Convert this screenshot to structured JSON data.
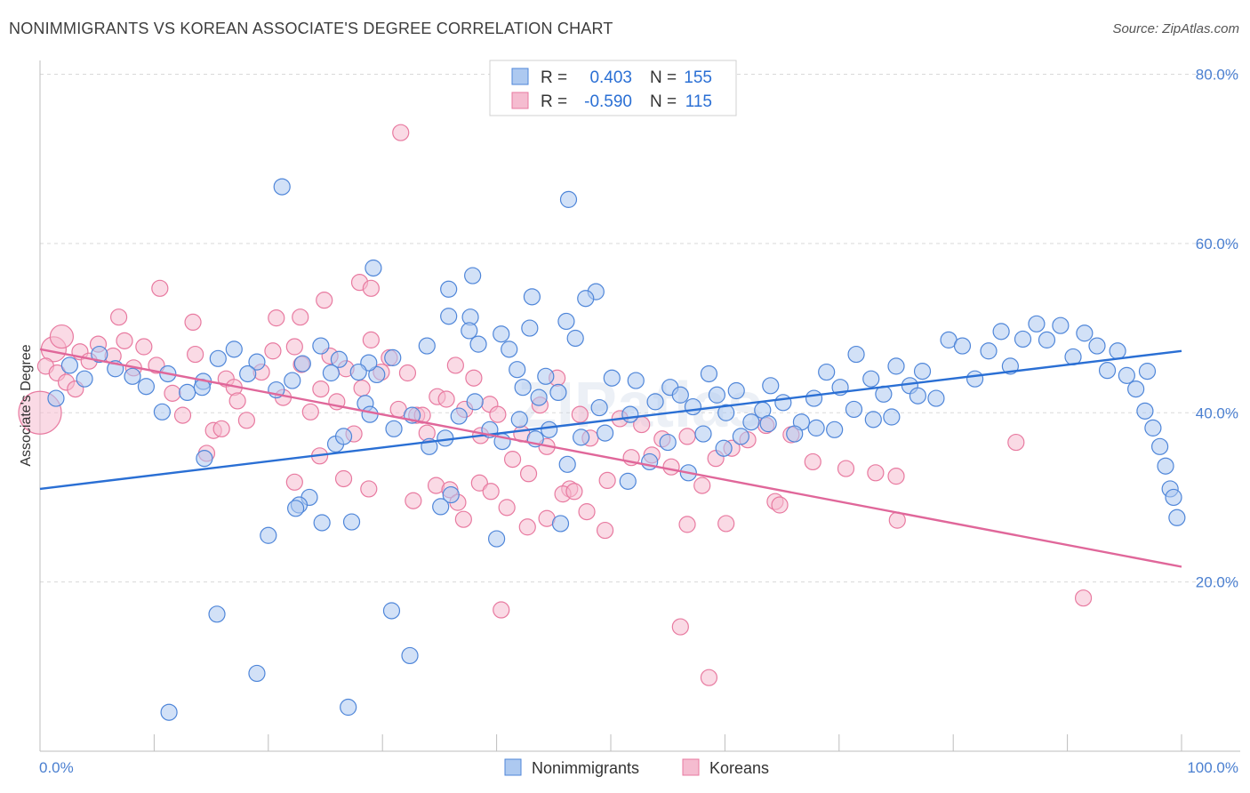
{
  "title": "NONIMMIGRANTS VS KOREAN ASSOCIATE'S DEGREE CORRELATION CHART",
  "source": "Source: ZipAtlas.com",
  "watermark": "ZIPatlas",
  "colors": {
    "blue": "#4f86d9",
    "blue_fill": "#adc9f0",
    "blue_line": "#2a6fd4",
    "pink": "#e87aa0",
    "pink_fill": "#f5bcd0",
    "pink_line": "#e0679a",
    "axis_label": "#4a7fd0",
    "grid": "#d9d9d9"
  },
  "legend": {
    "rows": [
      {
        "r_label": "R =",
        "r_value": "0.403",
        "n_label": "N =",
        "n_value": "155"
      },
      {
        "r_label": "R =",
        "r_value": "-0.590",
        "n_label": "N =",
        "n_value": "115"
      }
    ]
  },
  "bottom_legend": {
    "series1": "Nonimmigrants",
    "series2": "Koreans"
  },
  "chart_data": {
    "type": "scatter",
    "title": "NONIMMIGRANTS VS KOREAN ASSOCIATE'S DEGREE CORRELATION CHART",
    "xlabel": "",
    "ylabel": "Associate's Degree",
    "xlim": [
      0,
      100
    ],
    "ylim": [
      0,
      80
    ],
    "x_tick_labels": [
      "0.0%",
      "100.0%"
    ],
    "y_ticks": [
      20,
      40,
      60,
      80
    ],
    "y_tick_labels": [
      "20.0%",
      "40.0%",
      "60.0%",
      "80.0%"
    ],
    "grid": true,
    "series": [
      {
        "name": "Nonimmigrants",
        "r": 0.403,
        "n": 155,
        "trend": {
          "x": [
            0,
            100
          ],
          "y": [
            31.0,
            47.3
          ]
        },
        "points": [
          [
            21.2,
            66.7
          ],
          [
            46.3,
            65.2
          ],
          [
            29.2,
            57.1
          ],
          [
            37.9,
            56.2
          ],
          [
            35.8,
            54.6
          ],
          [
            43.1,
            53.7
          ],
          [
            48.7,
            54.3
          ],
          [
            47.8,
            53.5
          ],
          [
            37.7,
            51.3
          ],
          [
            46.1,
            50.8
          ],
          [
            46.9,
            48.8
          ],
          [
            35.8,
            51.4
          ],
          [
            42.9,
            50.0
          ],
          [
            40.4,
            49.3
          ],
          [
            37.6,
            49.7
          ],
          [
            38.4,
            48.1
          ],
          [
            33.9,
            47.9
          ],
          [
            30.9,
            46.5
          ],
          [
            29.5,
            44.5
          ],
          [
            28.8,
            45.9
          ],
          [
            27.9,
            44.8
          ],
          [
            26.2,
            46.3
          ],
          [
            25.5,
            44.7
          ],
          [
            24.6,
            47.9
          ],
          [
            23.0,
            45.8
          ],
          [
            22.1,
            43.8
          ],
          [
            20.7,
            42.7
          ],
          [
            19.0,
            46.0
          ],
          [
            18.2,
            44.6
          ],
          [
            17.0,
            47.5
          ],
          [
            15.6,
            46.4
          ],
          [
            14.3,
            43.7
          ],
          [
            12.9,
            42.4
          ],
          [
            11.2,
            44.6
          ],
          [
            10.7,
            40.1
          ],
          [
            9.3,
            43.1
          ],
          [
            8.1,
            44.3
          ],
          [
            6.6,
            45.2
          ],
          [
            5.2,
            46.9
          ],
          [
            3.9,
            44.0
          ],
          [
            2.6,
            45.6
          ],
          [
            1.4,
            41.7
          ],
          [
            41.1,
            47.5
          ],
          [
            41.8,
            45.1
          ],
          [
            42.3,
            43.0
          ],
          [
            43.7,
            41.8
          ],
          [
            44.3,
            44.3
          ],
          [
            45.4,
            42.4
          ],
          [
            49.0,
            40.6
          ],
          [
            50.1,
            44.1
          ],
          [
            51.7,
            39.8
          ],
          [
            52.2,
            43.8
          ],
          [
            53.9,
            41.3
          ],
          [
            55.2,
            43.0
          ],
          [
            56.1,
            42.1
          ],
          [
            57.2,
            40.7
          ],
          [
            58.6,
            44.6
          ],
          [
            59.3,
            42.1
          ],
          [
            60.1,
            40.0
          ],
          [
            61.0,
            42.6
          ],
          [
            62.3,
            38.9
          ],
          [
            63.3,
            40.3
          ],
          [
            64.0,
            43.2
          ],
          [
            65.1,
            41.2
          ],
          [
            66.7,
            38.9
          ],
          [
            67.8,
            41.7
          ],
          [
            68.9,
            44.8
          ],
          [
            70.1,
            43.0
          ],
          [
            71.5,
            46.9
          ],
          [
            72.8,
            44.0
          ],
          [
            73.9,
            42.2
          ],
          [
            75.0,
            45.5
          ],
          [
            76.2,
            43.2
          ],
          [
            77.3,
            44.9
          ],
          [
            78.5,
            41.7
          ],
          [
            79.6,
            48.6
          ],
          [
            80.8,
            47.9
          ],
          [
            81.9,
            44.0
          ],
          [
            83.1,
            47.3
          ],
          [
            84.2,
            49.6
          ],
          [
            85.0,
            45.5
          ],
          [
            86.1,
            48.7
          ],
          [
            87.3,
            50.5
          ],
          [
            88.2,
            48.6
          ],
          [
            89.4,
            50.3
          ],
          [
            90.5,
            46.6
          ],
          [
            91.5,
            49.4
          ],
          [
            92.6,
            47.9
          ],
          [
            93.5,
            45.0
          ],
          [
            94.4,
            47.3
          ],
          [
            95.2,
            44.4
          ],
          [
            96.0,
            42.8
          ],
          [
            96.8,
            40.2
          ],
          [
            97.5,
            38.2
          ],
          [
            98.1,
            36.0
          ],
          [
            98.6,
            33.7
          ],
          [
            99.0,
            31.0
          ],
          [
            99.3,
            30.0
          ],
          [
            99.6,
            27.6
          ],
          [
            31.0,
            38.1
          ],
          [
            32.6,
            39.7
          ],
          [
            34.1,
            36.0
          ],
          [
            35.5,
            37.0
          ],
          [
            36.7,
            39.6
          ],
          [
            38.1,
            41.3
          ],
          [
            39.4,
            38.0
          ],
          [
            40.5,
            36.6
          ],
          [
            42.0,
            39.2
          ],
          [
            43.4,
            36.9
          ],
          [
            44.6,
            38.0
          ],
          [
            46.2,
            33.9
          ],
          [
            47.4,
            37.1
          ],
          [
            49.5,
            37.6
          ],
          [
            51.5,
            31.9
          ],
          [
            53.4,
            34.2
          ],
          [
            55.0,
            36.5
          ],
          [
            56.8,
            32.9
          ],
          [
            58.1,
            37.5
          ],
          [
            59.9,
            35.8
          ],
          [
            61.4,
            37.2
          ],
          [
            63.8,
            38.7
          ],
          [
            66.1,
            37.5
          ],
          [
            68.0,
            38.2
          ],
          [
            69.6,
            38.0
          ],
          [
            71.3,
            40.4
          ],
          [
            73.0,
            39.2
          ],
          [
            74.6,
            39.5
          ],
          [
            76.9,
            42.0
          ],
          [
            25.9,
            36.3
          ],
          [
            26.6,
            37.2
          ],
          [
            28.5,
            41.1
          ],
          [
            23.6,
            30.0
          ],
          [
            22.7,
            29.1
          ],
          [
            22.4,
            28.7
          ],
          [
            14.4,
            34.6
          ],
          [
            28.9,
            39.8
          ],
          [
            24.7,
            27.0
          ],
          [
            27.3,
            27.1
          ],
          [
            20.0,
            25.5
          ],
          [
            15.5,
            16.2
          ],
          [
            19.0,
            9.2
          ],
          [
            36.0,
            30.3
          ],
          [
            35.1,
            28.9
          ],
          [
            45.6,
            26.9
          ],
          [
            40.0,
            25.1
          ],
          [
            14.2,
            43.0
          ],
          [
            30.8,
            16.6
          ],
          [
            32.4,
            11.3
          ],
          [
            11.3,
            4.6
          ],
          [
            27.0,
            5.2
          ],
          [
            97.0,
            44.9
          ]
        ]
      },
      {
        "name": "Koreans",
        "r": -0.59,
        "n": 115,
        "trend": {
          "x": [
            0,
            100
          ],
          "y": [
            47.5,
            21.8
          ]
        },
        "points": [
          [
            0.0,
            40.0
          ],
          [
            1.2,
            47.5
          ],
          [
            1.9,
            49.0
          ],
          [
            3.5,
            47.2
          ],
          [
            4.3,
            46.1
          ],
          [
            5.1,
            48.1
          ],
          [
            6.4,
            46.7
          ],
          [
            7.4,
            48.5
          ],
          [
            8.2,
            45.3
          ],
          [
            9.1,
            47.8
          ],
          [
            10.2,
            45.6
          ],
          [
            11.6,
            42.3
          ],
          [
            12.5,
            39.7
          ],
          [
            13.6,
            46.9
          ],
          [
            14.6,
            35.2
          ],
          [
            15.2,
            37.9
          ],
          [
            16.3,
            44.0
          ],
          [
            17.0,
            43.0
          ],
          [
            18.1,
            39.1
          ],
          [
            19.4,
            44.8
          ],
          [
            20.4,
            47.3
          ],
          [
            21.3,
            41.8
          ],
          [
            22.3,
            47.8
          ],
          [
            22.9,
            45.7
          ],
          [
            23.7,
            40.1
          ],
          [
            24.6,
            42.8
          ],
          [
            25.4,
            46.7
          ],
          [
            26.0,
            41.3
          ],
          [
            26.8,
            45.2
          ],
          [
            27.5,
            37.5
          ],
          [
            28.2,
            42.9
          ],
          [
            29.0,
            48.6
          ],
          [
            29.9,
            44.8
          ],
          [
            30.6,
            46.5
          ],
          [
            31.4,
            40.4
          ],
          [
            32.2,
            44.7
          ],
          [
            33.0,
            39.7
          ],
          [
            33.9,
            37.6
          ],
          [
            34.8,
            41.9
          ],
          [
            35.6,
            41.6
          ],
          [
            36.4,
            45.6
          ],
          [
            37.2,
            40.4
          ],
          [
            38.0,
            44.1
          ],
          [
            38.6,
            37.3
          ],
          [
            39.4,
            41.0
          ],
          [
            40.1,
            39.8
          ],
          [
            41.4,
            34.5
          ],
          [
            42.2,
            37.5
          ],
          [
            42.8,
            32.8
          ],
          [
            43.8,
            40.9
          ],
          [
            44.4,
            36.0
          ],
          [
            45.3,
            44.1
          ],
          [
            46.4,
            31.0
          ],
          [
            47.3,
            39.8
          ],
          [
            48.2,
            37.0
          ],
          [
            49.7,
            32.0
          ],
          [
            50.8,
            39.3
          ],
          [
            51.8,
            34.7
          ],
          [
            52.7,
            38.6
          ],
          [
            53.6,
            35.0
          ],
          [
            54.5,
            36.9
          ],
          [
            55.3,
            33.6
          ],
          [
            56.7,
            37.2
          ],
          [
            58.0,
            31.4
          ],
          [
            59.2,
            34.6
          ],
          [
            60.6,
            35.8
          ],
          [
            62.0,
            36.8
          ],
          [
            63.6,
            38.5
          ],
          [
            64.4,
            29.5
          ],
          [
            65.8,
            37.4
          ],
          [
            67.7,
            34.2
          ],
          [
            70.6,
            33.4
          ],
          [
            73.2,
            32.9
          ],
          [
            75.0,
            32.5
          ],
          [
            0.5,
            45.5
          ],
          [
            1.5,
            44.7
          ],
          [
            2.3,
            43.6
          ],
          [
            3.1,
            42.8
          ],
          [
            6.9,
            51.3
          ],
          [
            10.5,
            54.7
          ],
          [
            13.4,
            50.7
          ],
          [
            20.7,
            51.2
          ],
          [
            22.8,
            51.3
          ],
          [
            24.9,
            53.3
          ],
          [
            28.0,
            55.4
          ],
          [
            29.0,
            54.7
          ],
          [
            31.6,
            73.1
          ],
          [
            15.9,
            38.1
          ],
          [
            17.3,
            41.4
          ],
          [
            22.3,
            31.8
          ],
          [
            24.5,
            34.9
          ],
          [
            26.6,
            32.2
          ],
          [
            32.7,
            29.6
          ],
          [
            34.7,
            31.4
          ],
          [
            35.9,
            30.9
          ],
          [
            36.6,
            29.4
          ],
          [
            38.5,
            31.7
          ],
          [
            39.5,
            30.7
          ],
          [
            40.9,
            28.8
          ],
          [
            44.4,
            27.5
          ],
          [
            45.8,
            30.4
          ],
          [
            46.8,
            30.7
          ],
          [
            47.9,
            28.3
          ],
          [
            49.5,
            26.1
          ],
          [
            56.7,
            26.8
          ],
          [
            60.1,
            26.9
          ],
          [
            64.8,
            29.1
          ],
          [
            75.1,
            27.3
          ],
          [
            85.5,
            36.5
          ],
          [
            91.4,
            18.1
          ],
          [
            28.8,
            31.0
          ],
          [
            33.5,
            39.7
          ],
          [
            37.1,
            27.4
          ],
          [
            42.7,
            26.5
          ],
          [
            56.1,
            14.7
          ],
          [
            58.6,
            8.7
          ],
          [
            40.4,
            16.7
          ]
        ]
      }
    ]
  }
}
